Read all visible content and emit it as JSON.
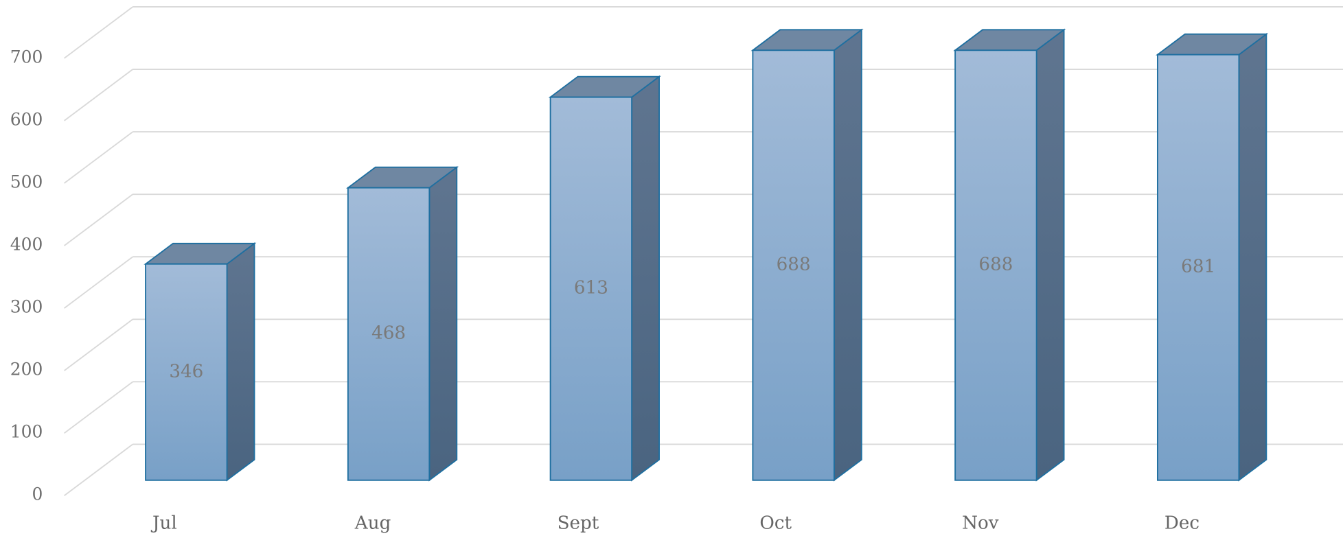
{
  "chart_data": {
    "type": "bar3d",
    "categories": [
      "Jul",
      "Aug",
      "Sept",
      "Oct",
      "Nov",
      "Dec"
    ],
    "values": [
      346,
      468,
      613,
      688,
      688,
      681
    ],
    "color": "#8aaed3",
    "ylim": [
      0,
      700
    ],
    "yticks": [
      0,
      100,
      200,
      300,
      400,
      500,
      600,
      700
    ],
    "grid": true
  }
}
